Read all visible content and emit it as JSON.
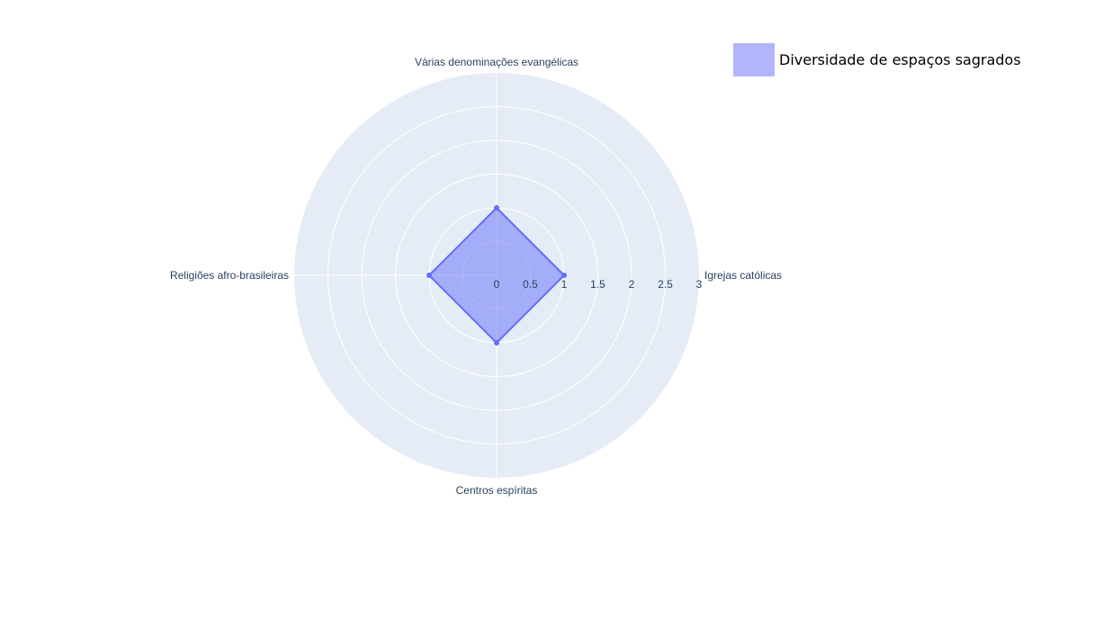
{
  "chart_data": {
    "type": "radar",
    "categories": [
      "Igrejas católicas",
      "Várias denominações evangélicas",
      "Religiões afro-brasileiras",
      "Centros espíritas"
    ],
    "series": [
      {
        "name": "Diversidade de espaços sagrados",
        "values": [
          1,
          1,
          1,
          1
        ]
      }
    ],
    "radial_ticks": [
      "0",
      "0.5",
      "1",
      "1.5",
      "2",
      "2.5",
      "3"
    ],
    "radial_tick_values": [
      0,
      0.5,
      1,
      1.5,
      2,
      2.5,
      3
    ],
    "rlim": [
      0,
      3
    ],
    "grid": true,
    "legend_position": "top-right",
    "colors": {
      "polar_bg": "#e5ecf6",
      "grid": "#ffffff",
      "fill": "#636efa",
      "fill_opacity": 0.5,
      "line": "#636efa",
      "text": "#2a3f5f"
    }
  }
}
